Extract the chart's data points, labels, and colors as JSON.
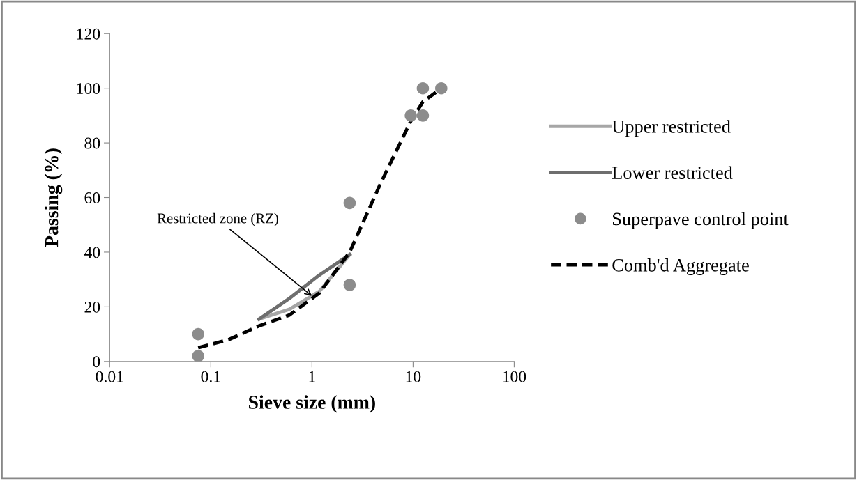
{
  "chart_data": {
    "type": "line",
    "xlabel": "Sieve size (mm)",
    "ylabel": "Passing (%)",
    "log": "x",
    "xlim": [
      0.01,
      100
    ],
    "xticks": [
      0.01,
      0.1,
      1,
      10,
      100
    ],
    "ylim": [
      0,
      120
    ],
    "yticks": [
      0,
      20,
      40,
      60,
      80,
      100,
      120
    ],
    "grid": false,
    "legend": "right",
    "series": [
      {
        "name": "Upper restricted",
        "type": "line",
        "line_style": "solid",
        "color": "#a6a6a6",
        "x": [
          0.3,
          0.6,
          1.18,
          2.36
        ],
        "values": [
          15.5,
          19.1,
          25.6,
          39.1
        ]
      },
      {
        "name": "Lower restricted",
        "type": "line",
        "line_style": "solid",
        "color": "#6e6e6e",
        "x": [
          0.3,
          0.6,
          1.18,
          2.36
        ],
        "values": [
          15.5,
          23.1,
          31.6,
          39.1
        ]
      },
      {
        "name": "Superpave control point",
        "type": "scatter",
        "marker": "circle",
        "color": "#8c8c8c",
        "x": [
          0.075,
          0.075,
          2.36,
          2.36,
          9.5,
          12.5,
          12.5,
          19
        ],
        "values": [
          10,
          2,
          58,
          28,
          90,
          100,
          90,
          100
        ]
      },
      {
        "name": "Comb'd Aggregate",
        "type": "line",
        "line_style": "dashed",
        "color": "#000000",
        "x": [
          0.075,
          0.15,
          0.3,
          0.6,
          1.18,
          2.36,
          4.75,
          9.5,
          12.5,
          19
        ],
        "values": [
          5,
          8,
          13,
          17,
          25,
          40,
          65,
          88,
          95,
          100
        ]
      }
    ],
    "annotations": [
      {
        "text": "Restricted zone (RZ)",
        "x": 1.0,
        "y": 24
      }
    ]
  }
}
